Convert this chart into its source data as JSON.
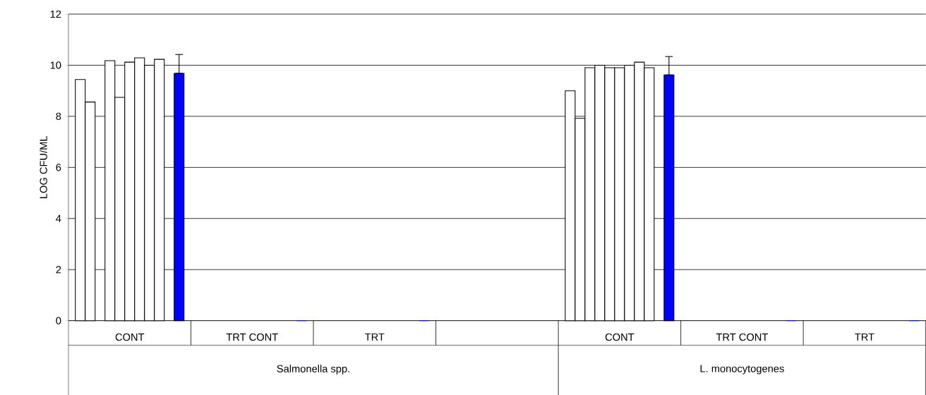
{
  "chart_data": {
    "type": "bar",
    "ylabel": "LOG CFU/ML",
    "categories": [
      "CONT",
      "TRT CONT",
      "TRT",
      null,
      "CONT",
      "TRT CONT",
      "TRT"
    ],
    "annotations": [
      "Salmonella spp.",
      "L. monocytogenes"
    ],
    "series": [
      {
        "color": "#ffffff",
        "values": [
          9.44,
          null,
          null,
          null,
          9.0,
          null,
          null
        ]
      },
      {
        "color": "#ffffff",
        "values": [
          8.56,
          null,
          null,
          null,
          7.92,
          null,
          null
        ]
      },
      {
        "color": "#ffffff",
        "values": [
          null,
          null,
          null,
          null,
          9.9,
          null,
          null
        ]
      },
      {
        "color": "#ffffff",
        "values": [
          10.18,
          null,
          null,
          null,
          10.0,
          null,
          null
        ]
      },
      {
        "color": "#ffffff",
        "values": [
          8.74,
          null,
          null,
          null,
          9.9,
          null,
          null
        ]
      },
      {
        "color": "#ffffff",
        "values": [
          10.12,
          null,
          null,
          null,
          9.9,
          null,
          null
        ]
      },
      {
        "color": "#ffffff",
        "values": [
          10.29,
          null,
          null,
          null,
          10.0,
          null,
          null
        ]
      },
      {
        "color": "#ffffff",
        "values": [
          10.0,
          null,
          null,
          null,
          10.12,
          null,
          null
        ]
      },
      {
        "color": "#ffffff",
        "values": [
          10.23,
          null,
          null,
          null,
          9.9,
          null,
          null
        ]
      },
      {
        "color": "#ffffff",
        "values": [
          null,
          null,
          null,
          null,
          null,
          null,
          null
        ]
      },
      {
        "color": "#0000ff",
        "values": [
          9.68,
          0,
          0,
          null,
          9.62,
          0,
          0
        ],
        "errors": [
          [
            9.68,
            10.42
          ],
          null,
          null,
          null,
          [
            9.62,
            10.34
          ],
          null,
          null
        ]
      }
    ],
    "ylim": [
      0,
      12
    ],
    "yticks": [
      0,
      2,
      4,
      6,
      8,
      10,
      12
    ],
    "grid": "y"
  }
}
